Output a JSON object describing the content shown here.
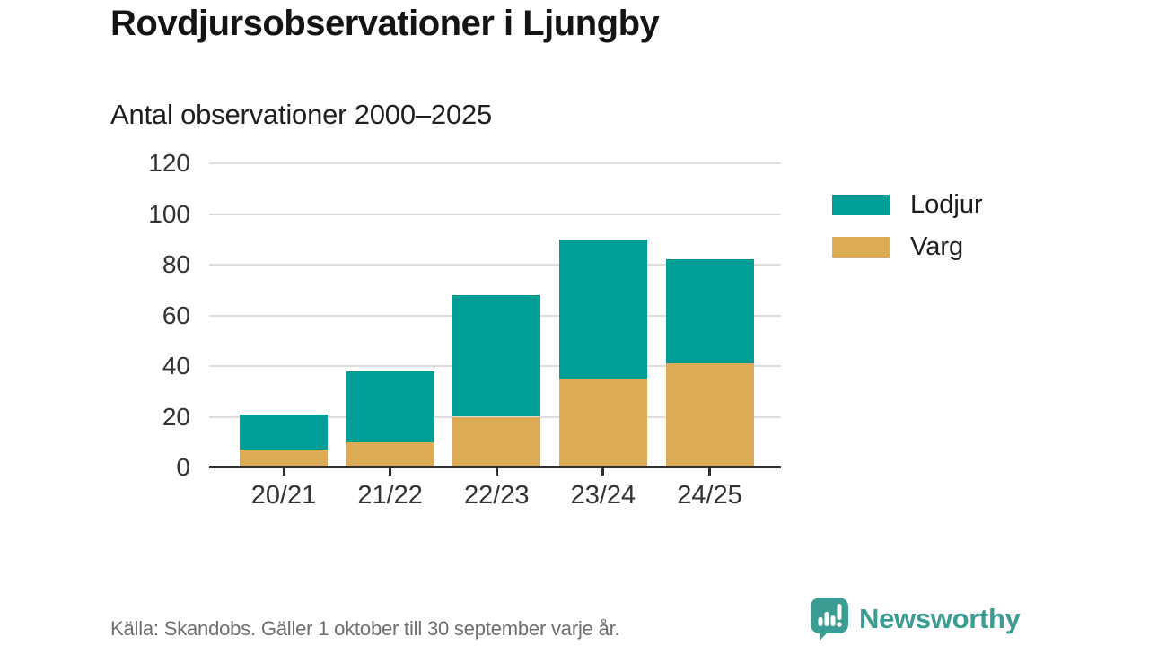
{
  "title": "Rovdjursobservationer i Ljungby",
  "subtitle": "Antal observationer 2000–2025",
  "source_note": "Källa: Skandobs. Gäller 1 oktober till 30 september varje år.",
  "brand": {
    "name": "Newsworthy",
    "color": "#3b9c94"
  },
  "colors": {
    "lodjur": "#009e95",
    "varg": "#dbac55",
    "grid": "#dedede",
    "axis": "#2d2d2d",
    "title_text": "#141414",
    "tick_text": "#333333",
    "muted_text": "#6e6e6e"
  },
  "legend": [
    {
      "label": "Lodjur",
      "color": "#009e95"
    },
    {
      "label": "Varg",
      "color": "#dbac55"
    }
  ],
  "chart_data": {
    "type": "bar",
    "stacked": true,
    "title": "Rovdjursobservationer i Ljungby",
    "subtitle": "Antal observationer 2000–2025",
    "categories": [
      "20/21",
      "21/22",
      "22/23",
      "23/24",
      "24/25"
    ],
    "series": [
      {
        "name": "Varg",
        "color": "#dbac55",
        "values": [
          7,
          10,
          20,
          35,
          41
        ]
      },
      {
        "name": "Lodjur",
        "color": "#009e95",
        "values": [
          14,
          28,
          48,
          55,
          41
        ]
      }
    ],
    "totals": [
      21,
      38,
      68,
      90,
      82
    ],
    "xlabel": "",
    "ylabel": "",
    "ylim": [
      0,
      120
    ],
    "yticks": [
      0,
      20,
      40,
      60,
      80,
      100,
      120
    ],
    "grid": true,
    "legend_position": "right"
  }
}
